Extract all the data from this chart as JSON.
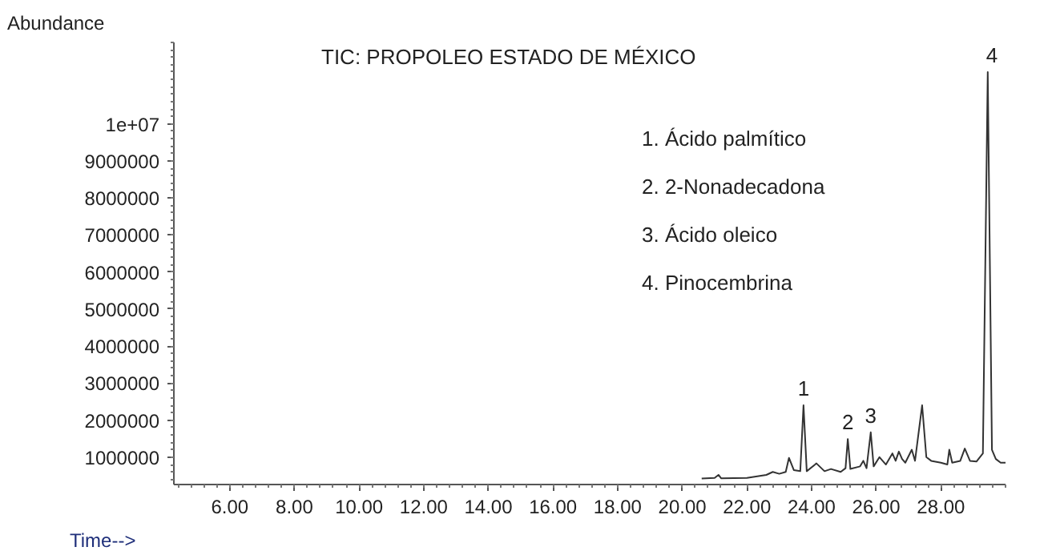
{
  "chart_data": {
    "type": "line",
    "title": "TIC: PROPOLEO ESTADO DE MÉXICO",
    "xlabel": "Time-->",
    "ylabel": "Abundance",
    "xlim": [
      4.27,
      30.0
    ],
    "ylim": [
      260000,
      12200000
    ],
    "xticks": [
      {
        "value": 6,
        "label": "6.00"
      },
      {
        "value": 8,
        "label": "8.00"
      },
      {
        "value": 10,
        "label": "10.00"
      },
      {
        "value": 12,
        "label": "12.00"
      },
      {
        "value": 14,
        "label": "14.00"
      },
      {
        "value": 16,
        "label": "16.00"
      },
      {
        "value": 18,
        "label": "18.00"
      },
      {
        "value": 20,
        "label": "20.00"
      },
      {
        "value": 22,
        "label": "22.00"
      },
      {
        "value": 24,
        "label": "24.00"
      },
      {
        "value": 26,
        "label": "26.00"
      },
      {
        "value": 28,
        "label": "28.00"
      }
    ],
    "yticks": [
      1000000,
      2000000,
      3000000,
      4000000,
      5000000,
      6000000,
      7000000,
      8000000,
      9000000,
      {
        "value": 10000000,
        "label": "1e+07"
      }
    ],
    "grid": false,
    "marker": "none",
    "line_style": "solid",
    "series": [
      {
        "color": "#333333",
        "x": [
          20.6,
          21.0,
          21.12,
          21.2,
          22.0,
          22.6,
          22.8,
          23.0,
          23.2,
          23.3,
          23.45,
          23.65,
          23.75,
          23.85,
          24.15,
          24.4,
          24.6,
          24.9,
          25.05,
          25.12,
          25.2,
          25.5,
          25.6,
          25.7,
          25.83,
          25.92,
          26.1,
          26.3,
          26.5,
          26.6,
          26.7,
          26.8,
          26.9,
          27.1,
          27.2,
          27.42,
          27.55,
          27.7,
          28.0,
          28.2,
          28.26,
          28.35,
          28.6,
          28.74,
          28.9,
          29.1,
          29.3,
          29.45,
          29.58,
          29.7,
          29.85,
          30.0
        ],
        "values": [
          420000,
          440000,
          520000,
          430000,
          440000,
          520000,
          600000,
          550000,
          600000,
          980000,
          650000,
          620000,
          2400000,
          620000,
          830000,
          620000,
          680000,
          600000,
          700000,
          1490000,
          680000,
          750000,
          900000,
          700000,
          1670000,
          750000,
          1000000,
          800000,
          1100000,
          900000,
          1150000,
          950000,
          850000,
          1200000,
          900000,
          2400000,
          1000000,
          900000,
          850000,
          800000,
          1200000,
          850000,
          900000,
          1230000,
          900000,
          880000,
          1100000,
          11400000,
          1200000,
          950000,
          850000,
          850000
        ]
      }
    ],
    "annotations": [
      {
        "text": "1",
        "x": 23.75,
        "y": 2400000
      },
      {
        "text": "2",
        "x": 25.12,
        "y": 1490000
      },
      {
        "text": "3",
        "x": 25.83,
        "y": 1670000
      },
      {
        "text": "4",
        "x": 29.58,
        "y": 11400000
      },
      "1.  Ácido palmítico",
      "2.  2-Nonadecadona",
      "3.  Ácido oleico",
      "4.  Pinocembrina"
    ]
  }
}
